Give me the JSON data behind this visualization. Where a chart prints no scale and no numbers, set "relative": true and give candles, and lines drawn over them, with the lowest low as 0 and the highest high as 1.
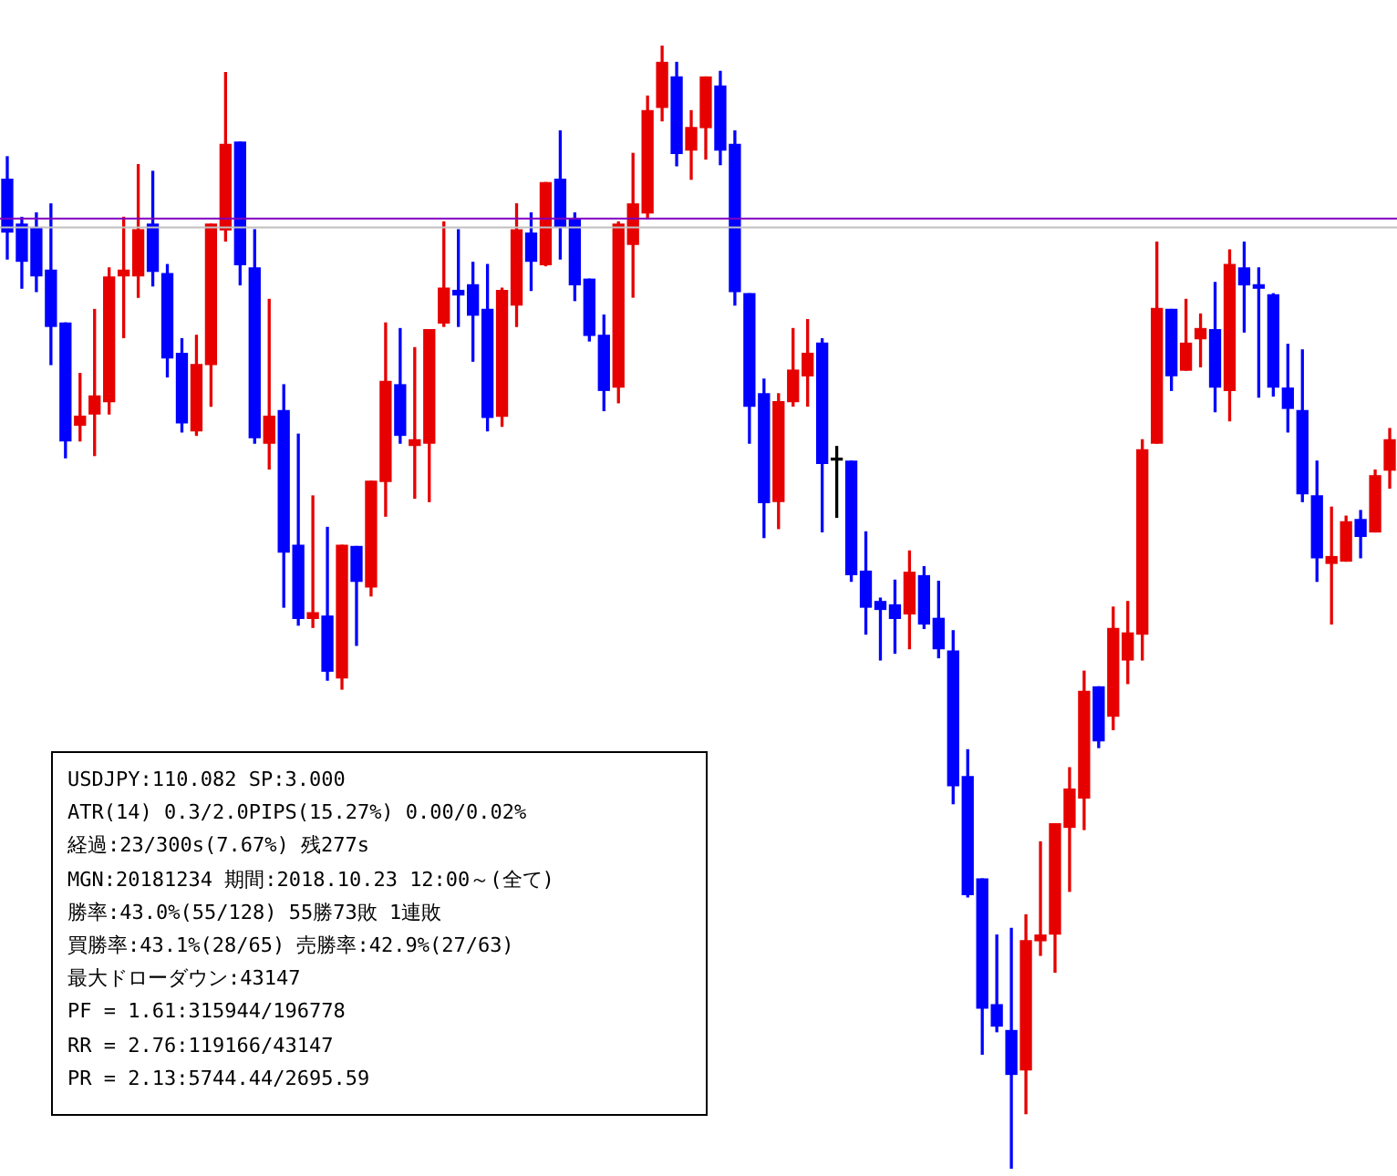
{
  "chart_data": {
    "type": "candlestick",
    "relative": true,
    "categories": [
      null,
      null,
      null,
      null,
      null,
      null,
      null,
      null,
      null,
      null,
      null,
      null,
      null,
      null,
      null,
      null,
      null,
      null,
      null,
      null,
      null,
      null,
      null,
      null,
      null,
      null,
      null,
      null,
      null,
      null,
      null,
      null,
      null,
      null,
      null,
      null,
      null,
      null,
      null,
      null,
      null,
      null,
      null,
      null,
      null,
      null,
      null,
      null,
      null,
      null,
      null,
      null,
      null,
      null,
      null,
      null,
      null,
      null,
      null,
      null,
      null,
      null,
      null,
      null,
      null,
      null,
      null,
      null,
      null,
      null,
      null,
      null,
      null,
      null,
      null,
      null,
      null,
      null,
      null,
      null,
      null,
      null,
      null,
      null,
      null,
      null,
      null,
      null,
      null,
      null,
      null,
      null,
      null,
      null,
      null,
      null
    ],
    "ohlc": [
      [
        0.881,
        0.901,
        0.81,
        0.834
      ],
      [
        0.841,
        0.847,
        0.784,
        0.808
      ],
      [
        0.838,
        0.851,
        0.781,
        0.795
      ],
      [
        0.8,
        0.859,
        0.716,
        0.75
      ],
      [
        0.753,
        0.753,
        0.633,
        0.648
      ],
      [
        0.662,
        0.708,
        0.648,
        0.67
      ],
      [
        0.672,
        0.765,
        0.635,
        0.688
      ],
      [
        0.683,
        0.802,
        0.672,
        0.794
      ],
      [
        0.795,
        0.847,
        0.74,
        0.8
      ],
      [
        0.795,
        0.894,
        0.776,
        0.836
      ],
      [
        0.841,
        0.888,
        0.786,
        0.799
      ],
      [
        0.797,
        0.805,
        0.705,
        0.722
      ],
      [
        0.726,
        0.739,
        0.656,
        0.664
      ],
      [
        0.657,
        0.742,
        0.653,
        0.716
      ],
      [
        0.716,
        0.841,
        0.679,
        0.841
      ],
      [
        0.836,
        0.976,
        0.826,
        0.912
      ],
      [
        0.914,
        0.914,
        0.787,
        0.805
      ],
      [
        0.802,
        0.836,
        0.646,
        0.651
      ],
      [
        0.646,
        0.774,
        0.623,
        0.67
      ],
      [
        0.675,
        0.698,
        0.5,
        0.549
      ],
      [
        0.555,
        0.654,
        0.484,
        0.49
      ],
      [
        0.49,
        0.599,
        0.482,
        0.495
      ],
      [
        0.492,
        0.571,
        0.435,
        0.443
      ],
      [
        0.437,
        0.555,
        0.427,
        0.555
      ],
      [
        0.554,
        0.554,
        0.466,
        0.523
      ],
      [
        0.518,
        0.612,
        0.51,
        0.612
      ],
      [
        0.612,
        0.753,
        0.581,
        0.701
      ],
      [
        0.698,
        0.748,
        0.646,
        0.653
      ],
      [
        0.644,
        0.731,
        0.597,
        0.649
      ],
      [
        0.646,
        0.747,
        0.594,
        0.747
      ],
      [
        0.753,
        0.843,
        0.75,
        0.784
      ],
      [
        0.782,
        0.836,
        0.75,
        0.778
      ],
      [
        0.787,
        0.807,
        0.719,
        0.76
      ],
      [
        0.765,
        0.805,
        0.657,
        0.669
      ],
      [
        0.67,
        0.784,
        0.661,
        0.782
      ],
      [
        0.769,
        0.859,
        0.75,
        0.836
      ],
      [
        0.833,
        0.851,
        0.782,
        0.808
      ],
      [
        0.805,
        0.878,
        0.804,
        0.878
      ],
      [
        0.881,
        0.924,
        0.81,
        0.839
      ],
      [
        0.846,
        0.851,
        0.773,
        0.787
      ],
      [
        0.792,
        0.792,
        0.737,
        0.742
      ],
      [
        0.742,
        0.76,
        0.675,
        0.693
      ],
      [
        0.696,
        0.843,
        0.682,
        0.841
      ],
      [
        0.823,
        0.904,
        0.776,
        0.859
      ],
      [
        0.851,
        0.955,
        0.846,
        0.942
      ],
      [
        0.945,
        1,
        0.933,
        0.985
      ],
      [
        0.972,
        0.985,
        0.893,
        0.904
      ],
      [
        0.907,
        0.942,
        0.881,
        0.927
      ],
      [
        0.927,
        0.972,
        0.899,
        0.972
      ],
      [
        0.964,
        0.977,
        0.894,
        0.907
      ],
      [
        0.912,
        0.924,
        0.769,
        0.781
      ],
      [
        0.779,
        0.779,
        0.646,
        0.679
      ],
      [
        0.69,
        0.703,
        0.562,
        0.593
      ],
      [
        0.594,
        0.69,
        0.57,
        0.683
      ],
      [
        0.683,
        0.748,
        0.679,
        0.711
      ],
      [
        0.706,
        0.756,
        0.679,
        0.726
      ],
      [
        0.735,
        0.739,
        0.567,
        0.628
      ],
      [
        0.631,
        0.643,
        0.58,
        0.631
      ],
      [
        0.63,
        0.63,
        0.523,
        0.529
      ],
      [
        0.532,
        0.567,
        0.476,
        0.5
      ],
      [
        0.505,
        0.508,
        0.453,
        0.498
      ],
      [
        0.502,
        0.524,
        0.459,
        0.49
      ],
      [
        0.494,
        0.55,
        0.463,
        0.531
      ],
      [
        0.528,
        0.536,
        0.481,
        0.485
      ],
      [
        0.49,
        0.523,
        0.455,
        0.463
      ],
      [
        0.461,
        0.479,
        0.325,
        0.341
      ],
      [
        0.349,
        0.373,
        0.242,
        0.244
      ],
      [
        0.258,
        0.258,
        0.102,
        0.143
      ],
      [
        0.146,
        0.208,
        0.122,
        0.127
      ],
      [
        0.123,
        0.214,
        0,
        0.084
      ],
      [
        0.088,
        0.226,
        0.049,
        0.203
      ],
      [
        0.203,
        0.291,
        0.19,
        0.208
      ],
      [
        0.209,
        0.307,
        0.175,
        0.307
      ],
      [
        0.304,
        0.357,
        0.247,
        0.338
      ],
      [
        0.33,
        0.443,
        0.302,
        0.425
      ],
      [
        0.429,
        0.429,
        0.375,
        0.381
      ],
      [
        0.403,
        0.5,
        0.391,
        0.481
      ],
      [
        0.453,
        0.505,
        0.432,
        0.477
      ],
      [
        0.476,
        0.649,
        0.453,
        0.64
      ],
      [
        0.646,
        0.825,
        0.646,
        0.766
      ],
      [
        0.765,
        0.765,
        0.693,
        0.706
      ],
      [
        0.711,
        0.774,
        0.711,
        0.735
      ],
      [
        0.739,
        0.761,
        0.714,
        0.748
      ],
      [
        0.747,
        0.789,
        0.674,
        0.696
      ],
      [
        0.693,
        0.818,
        0.666,
        0.805
      ],
      [
        0.802,
        0.825,
        0.745,
        0.787
      ],
      [
        0.787,
        0.802,
        0.687,
        0.784
      ],
      [
        0.778,
        0.779,
        0.688,
        0.696
      ],
      [
        0.695,
        0.734,
        0.656,
        0.677
      ],
      [
        0.675,
        0.729,
        0.594,
        0.601
      ],
      [
        0.599,
        0.63,
        0.523,
        0.544
      ],
      [
        0.539,
        0.589,
        0.485,
        0.545
      ],
      [
        0.541,
        0.581,
        0.541,
        0.576
      ],
      [
        0.578,
        0.586,
        0.544,
        0.563
      ],
      [
        0.567,
        0.622,
        0.567,
        0.617
      ],
      [
        0.622,
        0.659,
        0.606,
        0.649
      ]
    ],
    "colors": [
      "#0000ff",
      "#0000ff",
      "#0000ff",
      "#0000ff",
      "#0000ff",
      "#e60000",
      "#e60000",
      "#e60000",
      "#e60000",
      "#e60000",
      "#0000ff",
      "#0000ff",
      "#0000ff",
      "#e60000",
      "#e60000",
      "#e60000",
      "#0000ff",
      "#0000ff",
      "#e60000",
      "#0000ff",
      "#0000ff",
      "#e60000",
      "#0000ff",
      "#e60000",
      "#0000ff",
      "#e60000",
      "#e60000",
      "#0000ff",
      "#e60000",
      "#e60000",
      "#e60000",
      "#0000ff",
      "#0000ff",
      "#0000ff",
      "#e60000",
      "#e60000",
      "#0000ff",
      "#e60000",
      "#0000ff",
      "#0000ff",
      "#0000ff",
      "#0000ff",
      "#e60000",
      "#e60000",
      "#e60000",
      "#e60000",
      "#0000ff",
      "#e60000",
      "#e60000",
      "#0000ff",
      "#0000ff",
      "#0000ff",
      "#0000ff",
      "#e60000",
      "#e60000",
      "#e60000",
      "#0000ff",
      "#000000",
      "#0000ff",
      "#0000ff",
      "#0000ff",
      "#0000ff",
      "#e60000",
      "#0000ff",
      "#0000ff",
      "#0000ff",
      "#0000ff",
      "#0000ff",
      "#0000ff",
      "#0000ff",
      "#e60000",
      "#e60000",
      "#e60000",
      "#e60000",
      "#e60000",
      "#0000ff",
      "#e60000",
      "#e60000",
      "#e60000",
      "#e60000",
      "#0000ff",
      "#e60000",
      "#e60000",
      "#0000ff",
      "#e60000",
      "#0000ff",
      "#0000ff",
      "#0000ff",
      "#0000ff",
      "#0000ff",
      "#0000ff",
      "#e60000",
      "#e60000",
      "#0000ff",
      "#e60000",
      "#e60000"
    ],
    "ref_lines": [
      {
        "axis": "y",
        "value": 0.846,
        "color": "#8000c0"
      },
      {
        "axis": "y",
        "value": 0.838,
        "color": "#c0c0c0"
      }
    ],
    "annotations": [
      "USDJPY:110.082 SP:3.000",
      "ATR(14) 0.3/2.0PIPS(15.27%) 0.00/0.02%",
      "経過:23/300s(7.67%) 残277s",
      "MGN:20181234 期間:2018.10.23 12:00～(全て)",
      "勝率:43.0%(55/128) 55勝73敗 1連敗",
      "買勝率:43.1%(28/65) 売勝率:42.9%(27/63)",
      "最大ドローダウン:43147",
      "PF = 1.61:315944/196778",
      "RR = 2.76:119166/43147",
      "PR = 2.13:5744.44/2695.59"
    ]
  }
}
